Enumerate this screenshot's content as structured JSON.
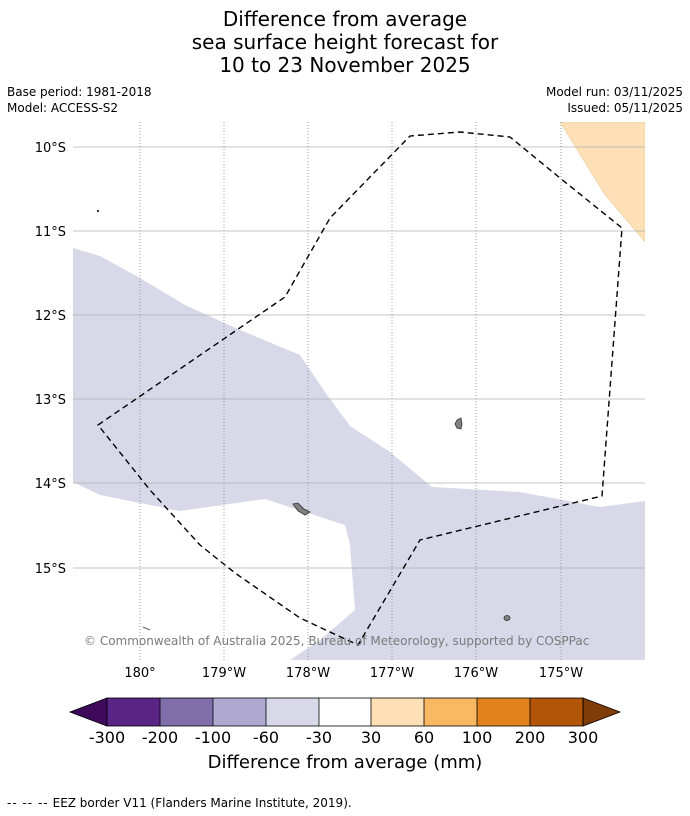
{
  "title": {
    "line1": "Difference from average",
    "line2": "sea surface height forecast for",
    "line3": "10 to 23 November 2025"
  },
  "meta": {
    "base_period": "Base period: 1981-2018",
    "model": "Model: ACCESS-S2",
    "model_run": "Model run: 03/11/2025",
    "issued": "Issued: 05/11/2025"
  },
  "map": {
    "lat_labels": [
      "10°S",
      "11°S",
      "12°S",
      "13°S",
      "14°S",
      "15°S"
    ],
    "lon_labels": [
      "180°",
      "179°W",
      "178°W",
      "177°W",
      "176°W",
      "175°W"
    ],
    "attribution": "© Commonwealth of Australia 2025, Bureau of Meteorology, supported by COSPPac",
    "colors": {
      "anomaly_minus_30_to_minus_60": "#d8d8e9",
      "anomaly_30_to_60": "#fde0b6",
      "eez_border": "#000000",
      "land": "#808080",
      "gridline": "#b0b0b0"
    }
  },
  "colorbar": {
    "title": "Difference from average (mm)",
    "labels": [
      "-300",
      "-200",
      "-100",
      "-60",
      "-30",
      "30",
      "60",
      "100",
      "200",
      "300"
    ],
    "colors": [
      "#3f0a5c",
      "#5a2485",
      "#7f6eaa",
      "#b0aad0",
      "#d8d8e9",
      "#ffffff",
      "#fde0b6",
      "#fbb863",
      "#e1821c",
      "#b15508",
      "#7f3b08"
    ]
  },
  "footnote": {
    "dash": "-- -- --",
    "text": "EEZ border V11 (Flanders Marine Institute, 2019)."
  }
}
